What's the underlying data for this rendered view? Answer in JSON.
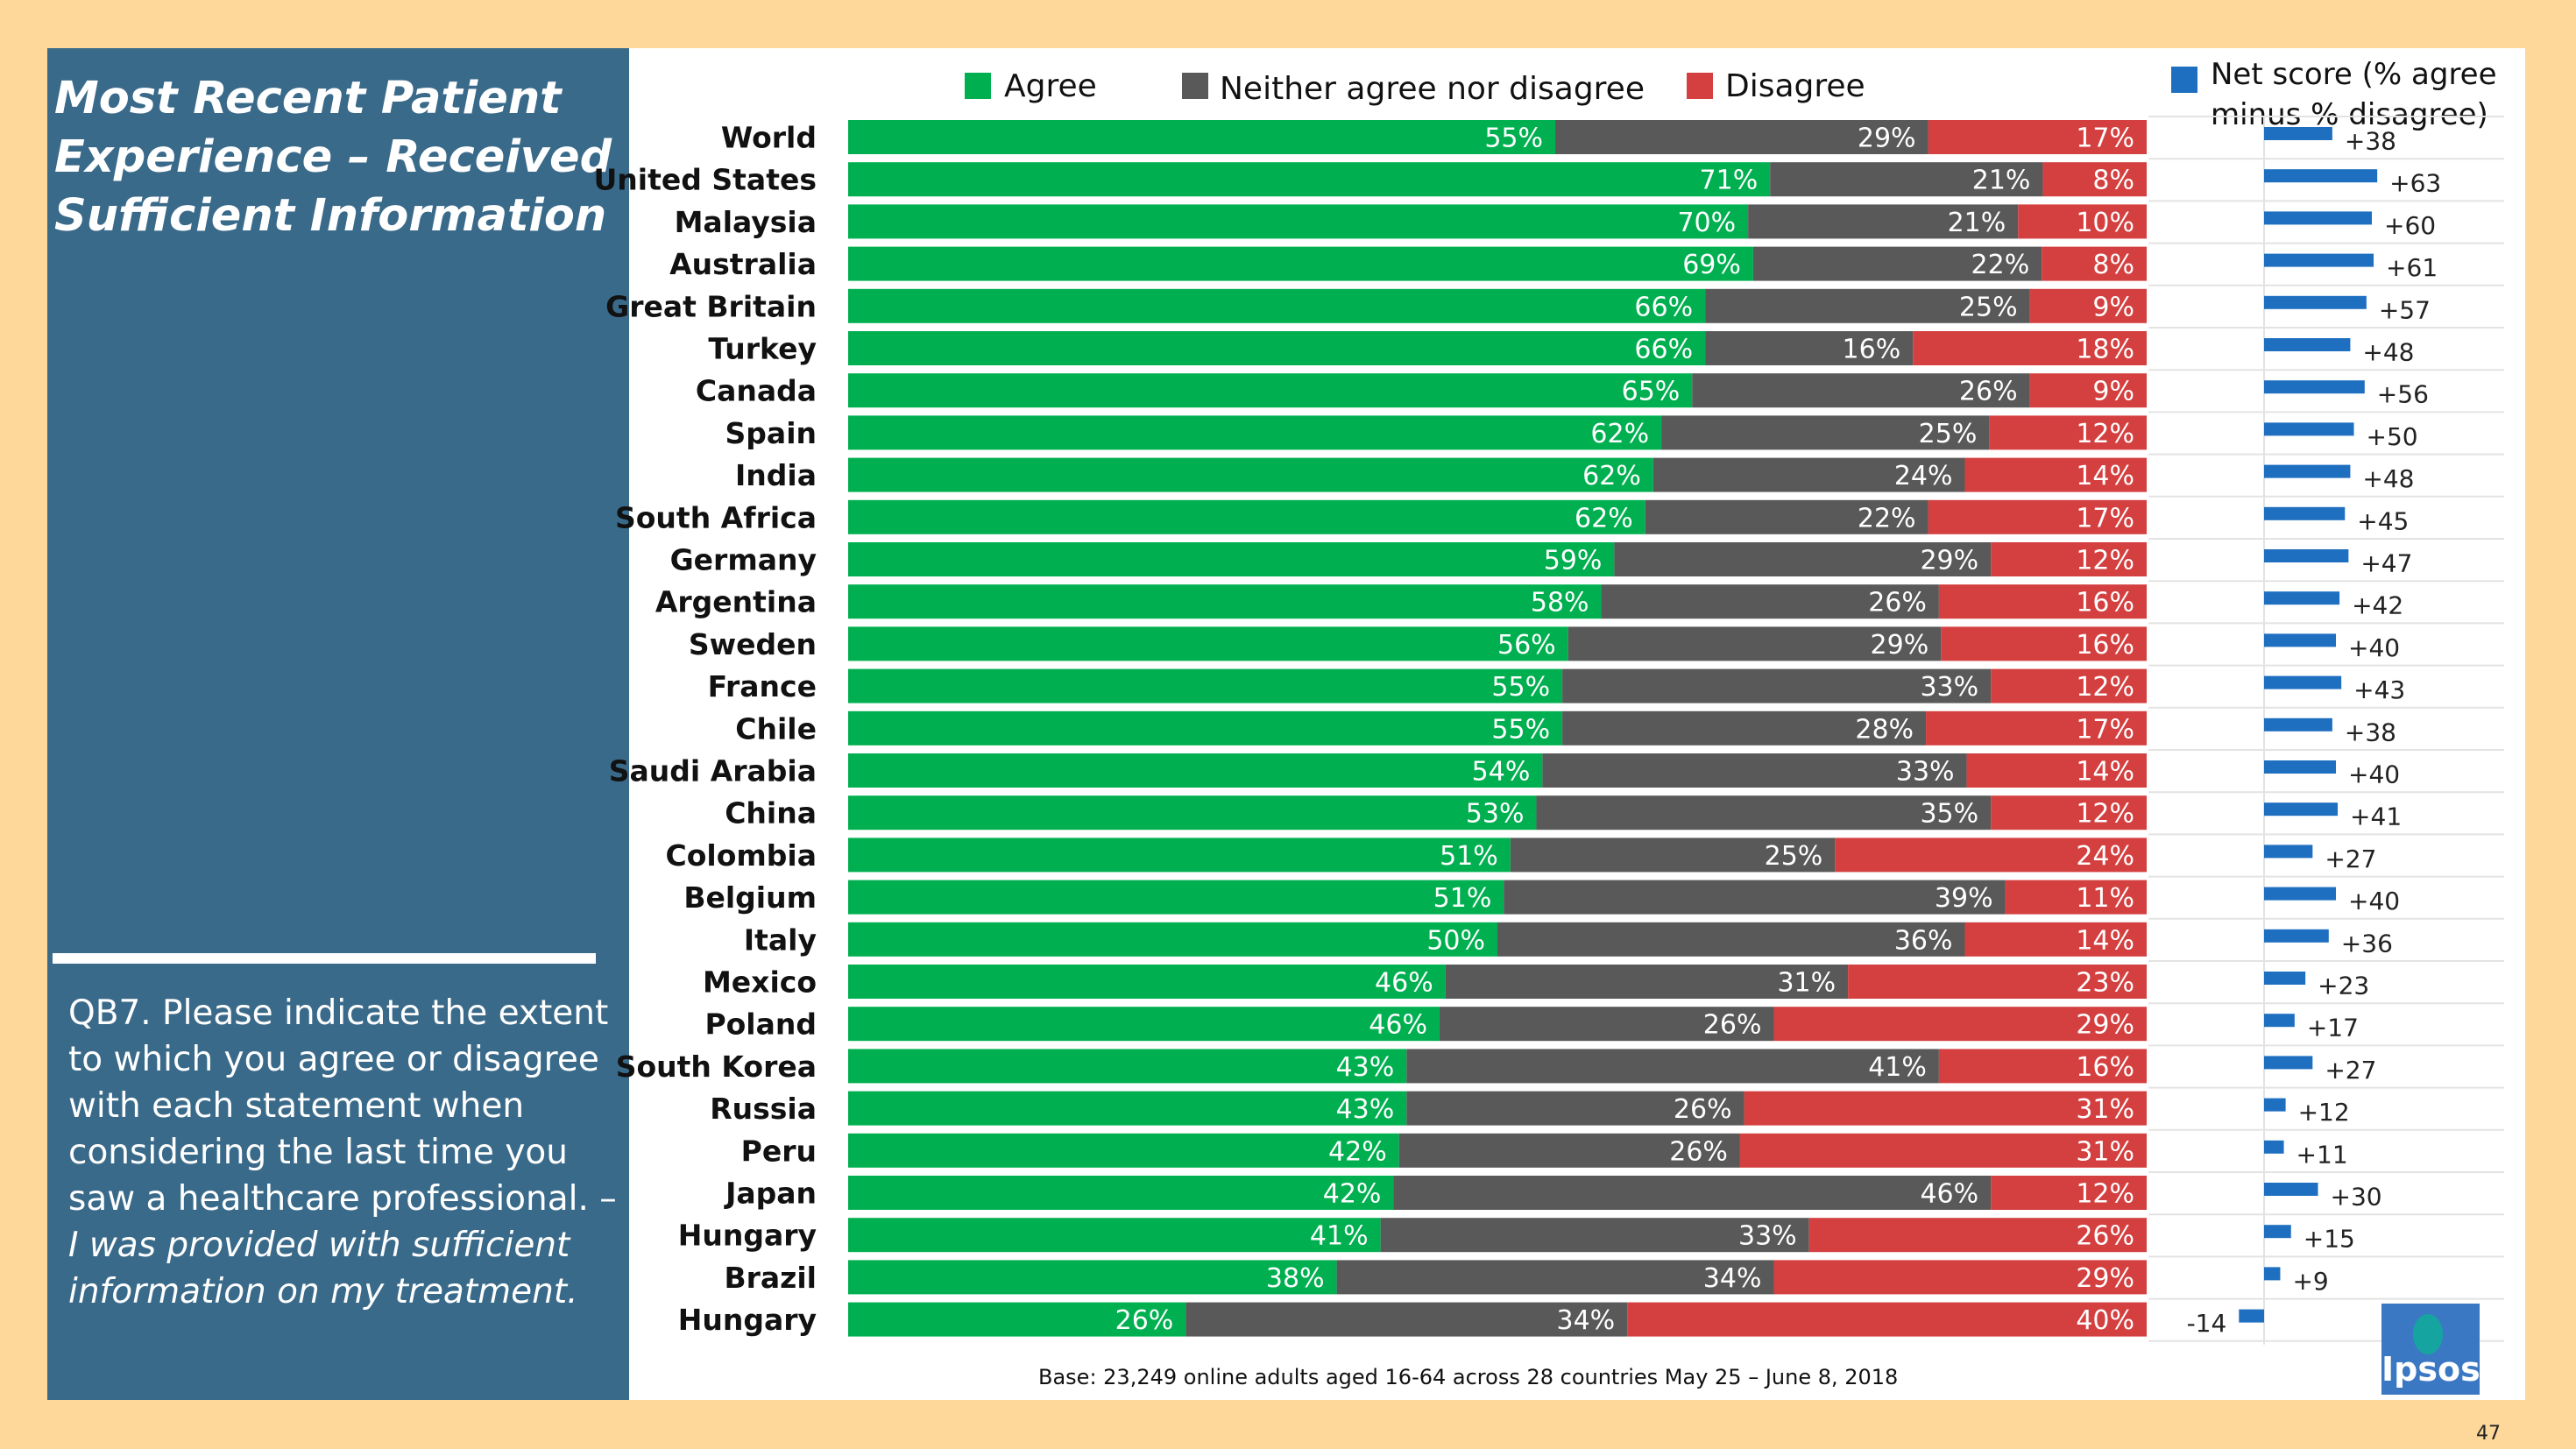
{
  "panel": {
    "title": "Most Recent Patient Experience – Received Sufficient Information",
    "question_main": "QB7. Please indicate the extent to which you agree or disagree with each statement when considering the last time you saw a healthcare professional. –",
    "question_statement": "I was provided with sufficient information on my treatment."
  },
  "legend": {
    "agree": "Agree",
    "neither": "Neither agree nor disagree",
    "disagree": "Disagree",
    "net_line1": "Net score (% agree",
    "net_line2": "minus % disagree)"
  },
  "colors": {
    "agree": "#00b050",
    "neither": "#595959",
    "disagree": "#d43f3f",
    "net": "#1f6fc0"
  },
  "chart_data": [
    {
      "type": "bar",
      "orientation": "horizontal",
      "stacked": true,
      "categories": [
        "World",
        "United States",
        "Malaysia",
        "Australia",
        "Great Britain",
        "Turkey",
        "Canada",
        "Spain",
        "India",
        "South Africa",
        "Germany",
        "Argentina",
        "Sweden",
        "France",
        "Chile",
        "Saudi Arabia",
        "China",
        "Colombia",
        "Belgium",
        "Italy",
        "Mexico",
        "Poland",
        "South Korea",
        "Russia",
        "Peru",
        "Japan",
        "Hungary",
        "Brazil",
        "Hungary"
      ],
      "series": [
        {
          "name": "Agree",
          "values": [
            55,
            71,
            70,
            69,
            66,
            66,
            65,
            62,
            62,
            62,
            59,
            58,
            56,
            55,
            55,
            54,
            53,
            51,
            51,
            50,
            46,
            46,
            43,
            43,
            42,
            42,
            41,
            38,
            26
          ]
        },
        {
          "name": "Neither agree nor disagree",
          "values": [
            29,
            21,
            21,
            22,
            25,
            16,
            26,
            25,
            24,
            22,
            29,
            26,
            29,
            33,
            28,
            33,
            35,
            25,
            39,
            36,
            31,
            26,
            41,
            26,
            26,
            46,
            33,
            34,
            34
          ]
        },
        {
          "name": "Disagree",
          "values": [
            17,
            8,
            10,
            8,
            9,
            18,
            9,
            12,
            14,
            17,
            12,
            16,
            16,
            12,
            17,
            14,
            12,
            24,
            11,
            14,
            23,
            29,
            16,
            31,
            31,
            12,
            26,
            29,
            40
          ]
        }
      ],
      "value_suffix": "%",
      "legend_position": "top"
    },
    {
      "type": "bar",
      "orientation": "horizontal",
      "series": [
        {
          "name": "Net score (% agree minus % disagree)",
          "values": [
            38,
            63,
            60,
            61,
            57,
            48,
            56,
            50,
            48,
            45,
            47,
            42,
            40,
            43,
            38,
            40,
            41,
            27,
            40,
            36,
            23,
            17,
            27,
            12,
            11,
            30,
            15,
            9,
            -14
          ]
        }
      ],
      "labels": [
        "+38",
        "+63",
        "+60",
        "+61",
        "+57",
        "+48",
        "+56",
        "+50",
        "+48",
        "+45",
        "+47",
        "+42",
        "+40",
        "+43",
        "+38",
        "+40",
        "+41",
        "+27",
        "+40",
        "+36",
        "+23",
        "+17",
        "+27",
        "+12",
        "+11",
        "+30",
        "+15",
        "+9",
        "-14"
      ]
    }
  ],
  "footer": {
    "base": "Base: 23,249 online adults aged 16-64 across 28 countries May 25 – June 8, 2018",
    "logo": "Ipsos",
    "page": "47"
  }
}
